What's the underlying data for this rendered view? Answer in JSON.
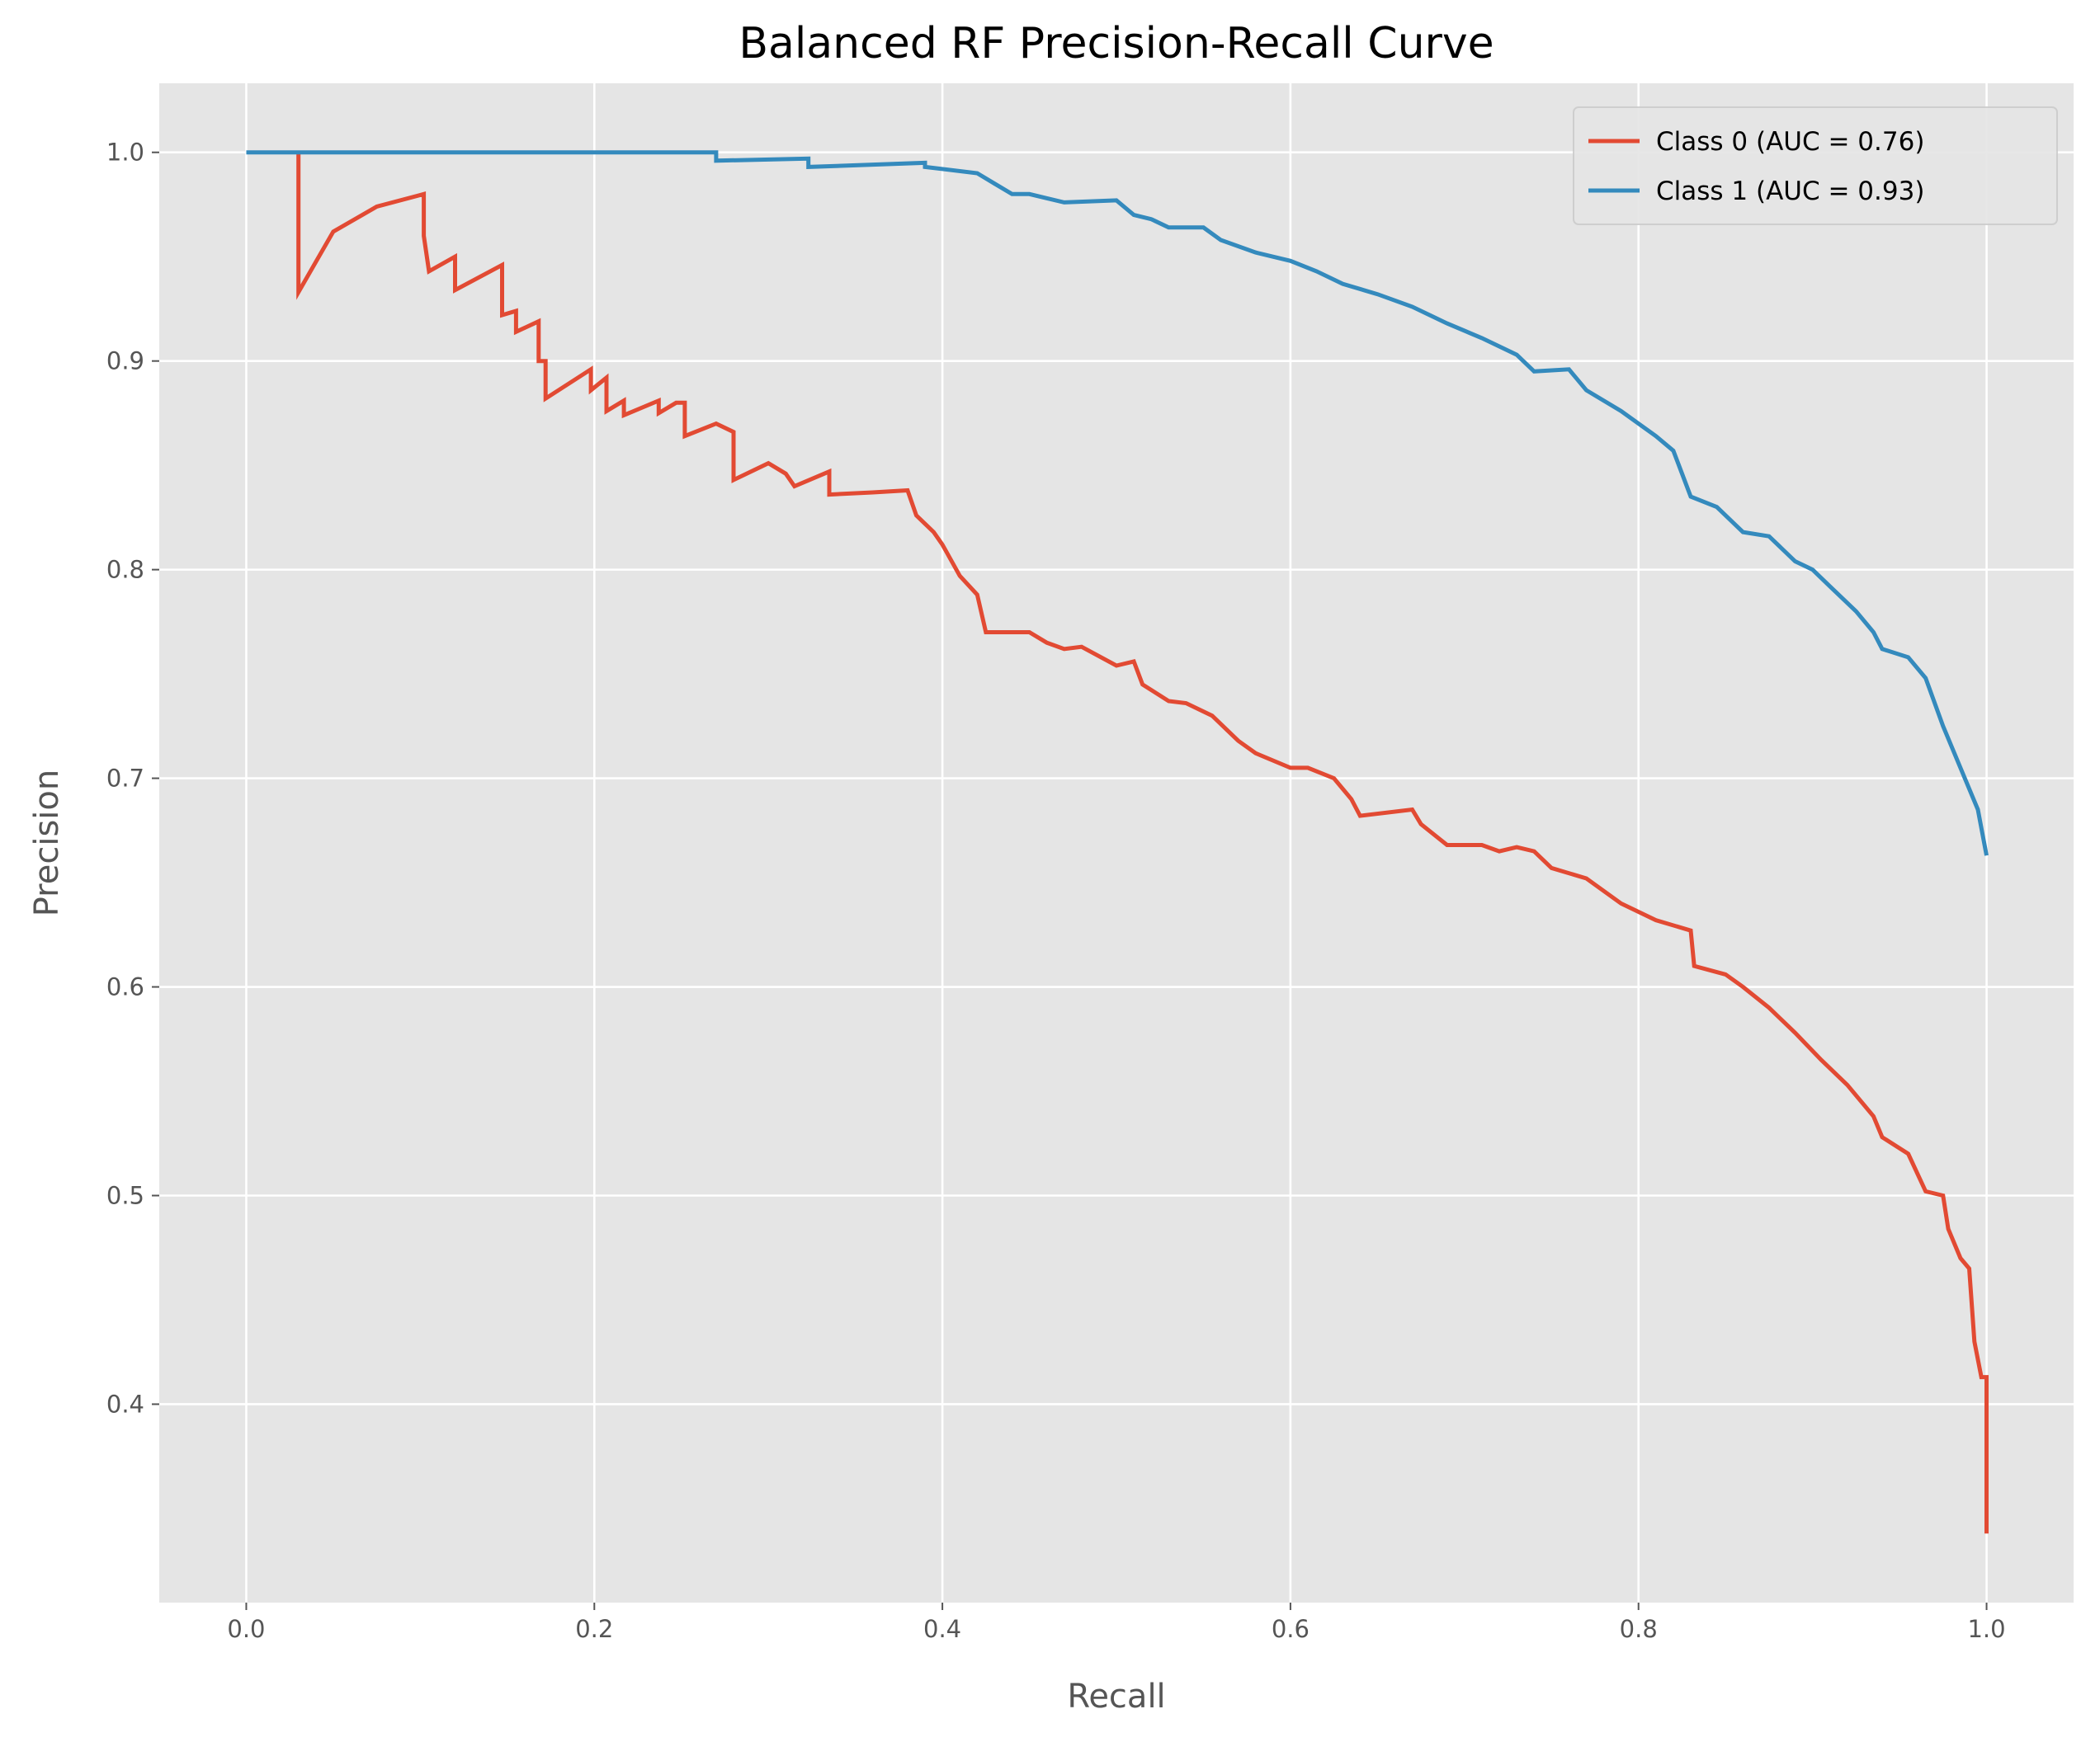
{
  "chart_data": {
    "type": "line",
    "title": "Balanced RF Precision-Recall Curve",
    "x_label": "Recall",
    "y_label": "Precision",
    "xlim": [
      -0.05,
      1.05
    ],
    "ylim": [
      0.3049,
      1.0331
    ],
    "xticks": [
      {
        "value": 0,
        "label": "0.0"
      },
      0.2,
      0.4,
      0.6,
      0.8,
      {
        "value": 1,
        "label": "1.0"
      }
    ],
    "yticks": [
      0.4,
      0.5,
      0.6,
      0.7,
      0.8,
      0.9,
      {
        "value": 1,
        "label": "1.0"
      }
    ],
    "grid": true,
    "legend": "upper right",
    "series": [
      {
        "name": "Class 0 (AUC = 0.76)",
        "color": "#e24a33",
        "x": [
          0.03,
          0.03,
          0.05,
          0.075,
          0.102,
          0.102,
          0.105,
          0.12,
          0.12,
          0.147,
          0.147,
          0.155,
          0.155,
          0.168,
          0.168,
          0.172,
          0.172,
          0.198,
          0.198,
          0.207,
          0.207,
          0.217,
          0.217,
          0.237,
          0.237,
          0.247,
          0.252,
          0.252,
          0.27,
          0.28,
          0.28,
          0.3,
          0.31,
          0.315,
          0.335,
          0.335,
          0.36,
          0.38,
          0.385,
          0.395,
          0.4,
          0.41,
          0.42,
          0.425,
          0.45,
          0.46,
          0.47,
          0.48,
          0.5,
          0.51,
          0.515,
          0.53,
          0.54,
          0.555,
          0.57,
          0.58,
          0.6,
          0.61,
          0.625,
          0.635,
          0.64,
          0.67,
          0.675,
          0.69,
          0.71,
          0.72,
          0.73,
          0.74,
          0.75,
          0.77,
          0.79,
          0.81,
          0.83,
          0.832,
          0.85,
          0.86,
          0.875,
          0.89,
          0.905,
          0.92,
          0.935,
          0.94,
          0.955,
          0.965,
          0.975,
          0.978,
          0.985,
          0.99,
          0.993,
          0.997,
          1.0,
          1.0
        ],
        "values": [
          1.0,
          0.933,
          0.962,
          0.974,
          0.98,
          0.96,
          0.943,
          0.95,
          0.934,
          0.946,
          0.922,
          0.924,
          0.914,
          0.919,
          0.9,
          0.9,
          0.882,
          0.896,
          0.886,
          0.892,
          0.876,
          0.881,
          0.874,
          0.881,
          0.875,
          0.88,
          0.88,
          0.864,
          0.87,
          0.866,
          0.843,
          0.851,
          0.846,
          0.84,
          0.847,
          0.836,
          0.837,
          0.838,
          0.826,
          0.818,
          0.812,
          0.797,
          0.788,
          0.77,
          0.77,
          0.765,
          0.762,
          0.763,
          0.754,
          0.756,
          0.745,
          0.737,
          0.736,
          0.73,
          0.718,
          0.712,
          0.705,
          0.705,
          0.7,
          0.69,
          0.682,
          0.685,
          0.678,
          0.668,
          0.668,
          0.665,
          0.667,
          0.665,
          0.657,
          0.652,
          0.64,
          0.632,
          0.627,
          0.61,
          0.606,
          0.6,
          0.59,
          0.578,
          0.565,
          0.553,
          0.538,
          0.528,
          0.52,
          0.502,
          0.5,
          0.484,
          0.47,
          0.465,
          0.43,
          0.413,
          0.413,
          0.338
        ]
      },
      {
        "name": "Class 1 (AUC = 0.93)",
        "color": "#348abd",
        "x": [
          0,
          0.27,
          0.27,
          0.323,
          0.323,
          0.39,
          0.39,
          0.42,
          0.43,
          0.44,
          0.45,
          0.47,
          0.5,
          0.51,
          0.52,
          0.53,
          0.55,
          0.56,
          0.58,
          0.6,
          0.615,
          0.63,
          0.65,
          0.67,
          0.69,
          0.71,
          0.73,
          0.74,
          0.76,
          0.77,
          0.79,
          0.81,
          0.82,
          0.825,
          0.83,
          0.845,
          0.86,
          0.875,
          0.89,
          0.9,
          0.91,
          0.925,
          0.935,
          0.94,
          0.955,
          0.965,
          0.975,
          0.985,
          0.995,
          1.0
        ],
        "values": [
          1.0,
          1.0,
          0.996,
          0.997,
          0.993,
          0.995,
          0.993,
          0.99,
          0.985,
          0.98,
          0.98,
          0.976,
          0.977,
          0.97,
          0.968,
          0.964,
          0.964,
          0.958,
          0.952,
          0.948,
          0.943,
          0.937,
          0.932,
          0.926,
          0.918,
          0.911,
          0.903,
          0.895,
          0.896,
          0.886,
          0.876,
          0.864,
          0.857,
          0.846,
          0.835,
          0.83,
          0.818,
          0.816,
          0.804,
          0.8,
          0.792,
          0.78,
          0.77,
          0.762,
          0.758,
          0.748,
          0.725,
          0.705,
          0.685,
          0.663
        ]
      }
    ]
  }
}
